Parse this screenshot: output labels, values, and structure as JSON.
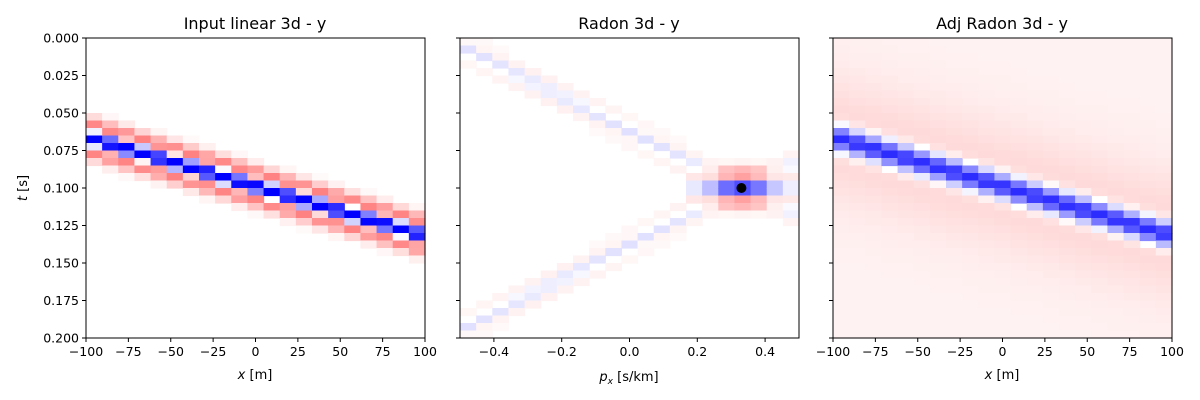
{
  "chart_data": [
    {
      "type": "heatmap",
      "title": "Input linear 3d - y",
      "xlabel": "x [m]",
      "ylabel": "t [s]",
      "xlim": [
        -100,
        100
      ],
      "ylim": [
        0.2,
        0.0
      ],
      "xticks": [
        "−100",
        "−75",
        "−50",
        "−25",
        "0",
        "25",
        "50",
        "75",
        "100"
      ],
      "yticks": [
        "0.000",
        "0.025",
        "0.050",
        "0.075",
        "0.100",
        "0.125",
        "0.150",
        "0.175",
        "0.200"
      ],
      "colormap": "bwr_r",
      "features": [
        {
          "kind": "linear-event",
          "t_at_xmin": 0.066,
          "t_at_xmax": 0.132,
          "main_color": "#0000ff",
          "sidelobe_color": "#ff8080"
        }
      ]
    },
    {
      "type": "heatmap",
      "title": "Radon 3d - y",
      "xlabel": "p_x [s/km]",
      "ylabel": "",
      "xlim": [
        -0.5,
        0.5
      ],
      "ylim": [
        0.2,
        0.0
      ],
      "xticks": [
        "−0.4",
        "−0.2",
        "0.0",
        "0.2",
        "0.4"
      ],
      "yticks": [],
      "colormap": "bwr_r",
      "features": [
        {
          "kind": "focus-point",
          "p": 0.33,
          "t": 0.1,
          "marker_color": "#000000"
        },
        {
          "kind": "smear-lines",
          "apex_p": 0.33,
          "apex_t": 0.1,
          "t_at_pmin_upper": 0.005,
          "t_at_pmin_lower": 0.195
        }
      ]
    },
    {
      "type": "heatmap",
      "title": "Adj Radon 3d - y",
      "xlabel": "x [m]",
      "ylabel": "",
      "xlim": [
        -100,
        100
      ],
      "ylim": [
        0.2,
        0.0
      ],
      "xticks": [
        "−100",
        "−75",
        "−50",
        "−25",
        "0",
        "25",
        "50",
        "75",
        "100"
      ],
      "yticks": [],
      "colormap": "bwr_r",
      "features": [
        {
          "kind": "linear-event",
          "t_at_xmin": 0.066,
          "t_at_xmax": 0.132,
          "main_color": "#0000ff",
          "sidelobe_color": "#ffd0d0"
        }
      ]
    }
  ]
}
